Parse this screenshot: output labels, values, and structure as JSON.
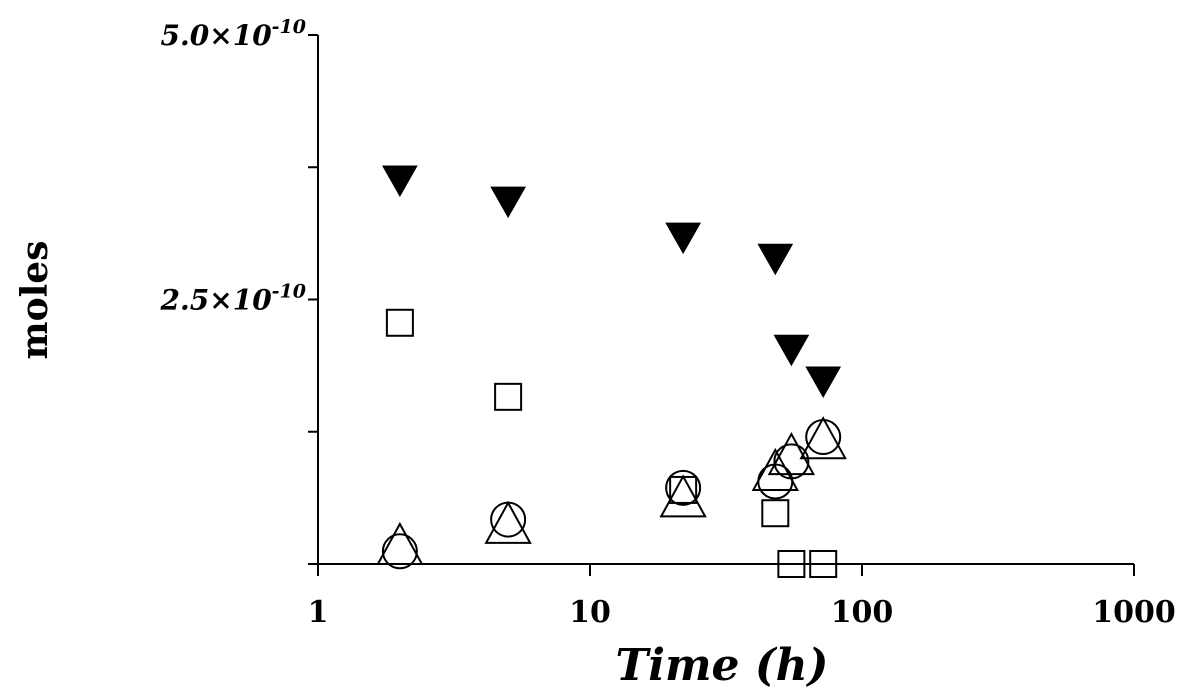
{
  "chart_data": {
    "type": "scatter",
    "title": "",
    "xlabel": "Time (h)",
    "ylabel": "moles",
    "x_scale": "log",
    "xlim": [
      1,
      1000
    ],
    "ylim": [
      0,
      5e-10
    ],
    "x_ticks": [
      1,
      10,
      100,
      1000
    ],
    "x_tick_labels": [
      "1",
      "10",
      "100",
      "1000"
    ],
    "y_ticks_labeled": [
      2.5e-10,
      5e-10
    ],
    "y_tick_labels": [
      {
        "mantissa": "2.5×10",
        "exponent": "-10"
      },
      {
        "mantissa": "5.0×10",
        "exponent": "-10"
      }
    ],
    "y_minor_ticks": [
      0,
      1.25e-10,
      3.75e-10
    ],
    "grid": false,
    "legend": "none",
    "series": [
      {
        "marker": "filled-down-triangle",
        "x": [
          2,
          5,
          22,
          48,
          55,
          72
        ],
        "y": [
          3.62e-10,
          3.42e-10,
          3.08e-10,
          2.88e-10,
          2.02e-10,
          1.72e-10
        ]
      },
      {
        "marker": "open-square",
        "x": [
          2,
          5,
          22,
          48,
          55,
          72
        ],
        "y": [
          2.28e-10,
          1.58e-10,
          7e-11,
          4.8e-11,
          0.0,
          0.0
        ]
      },
      {
        "marker": "open-circle",
        "x": [
          2,
          5,
          22,
          48,
          55,
          72
        ],
        "y": [
          1.2e-11,
          4.2e-11,
          7.2e-11,
          7.8e-11,
          9.7e-11,
          1.2e-10
        ]
      },
      {
        "marker": "open-up-triangle",
        "x": [
          2,
          5,
          22,
          48,
          55,
          72
        ],
        "y": [
          0.0,
          2e-11,
          4.5e-11,
          7e-11,
          8.5e-11,
          1e-10
        ]
      }
    ]
  }
}
